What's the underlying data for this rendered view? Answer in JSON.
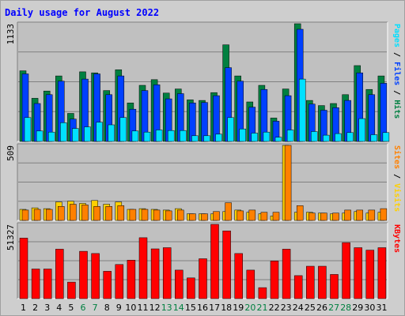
{
  "chart_data": {
    "type": "bar",
    "title": "Daily usage for August 2022",
    "categories": [
      "1",
      "2",
      "3",
      "4",
      "5",
      "6",
      "7",
      "8",
      "9",
      "10",
      "11",
      "12",
      "13",
      "14",
      "15",
      "16",
      "17",
      "18",
      "19",
      "20",
      "21",
      "22",
      "23",
      "24",
      "25",
      "26",
      "27",
      "28",
      "29",
      "30",
      "31"
    ],
    "weekend_days": [
      "6",
      "7",
      "13",
      "14",
      "20",
      "21",
      "27",
      "28"
    ],
    "panels": [
      {
        "name": "pages-files-hits",
        "ymax_label": "1133",
        "ylim": [
          0,
          1133
        ],
        "right_label": {
          "parts": [
            {
              "text": "Pages",
              "color": "#00e0ff"
            },
            {
              "text": " / ",
              "color": "#000000"
            },
            {
              "text": "Files",
              "color": "#0040ff"
            },
            {
              "text": " / ",
              "color": "#000000"
            },
            {
              "text": "Hits",
              "color": "#008040"
            }
          ]
        },
        "series": [
          {
            "name": "Hits",
            "color": "#008040",
            "values": [
              680,
              415,
              485,
              630,
              270,
              670,
              660,
              490,
              690,
              370,
              540,
              595,
              465,
              505,
              400,
              395,
              470,
              930,
              630,
              380,
              540,
              225,
              505,
              1133,
              395,
              345,
              365,
              450,
              730,
              500,
              630
            ]
          },
          {
            "name": "Files",
            "color": "#0040ff",
            "values": [
              650,
              365,
              450,
              580,
              215,
              600,
              650,
              450,
              630,
              310,
              490,
              545,
              410,
              460,
              370,
              375,
              440,
              710,
              580,
              330,
              500,
              195,
              440,
              1080,
              360,
              300,
              325,
              395,
              660,
              450,
              560
            ]
          },
          {
            "name": "Pages",
            "color": "#00e0ff",
            "values": [
              230,
              100,
              90,
              180,
              125,
              140,
              185,
              160,
              230,
              100,
              90,
              110,
              105,
              105,
              55,
              55,
              70,
              230,
              120,
              80,
              90,
              40,
              110,
              600,
              95,
              60,
              75,
              85,
              220,
              65,
              85
            ]
          }
        ]
      },
      {
        "name": "sites-visits",
        "ymax_label": "509",
        "ylim": [
          0,
          509
        ],
        "right_label": {
          "parts": [
            {
              "text": "Sites",
              "color": "#ff8000"
            },
            {
              "text": " / ",
              "color": "#000000"
            },
            {
              "text": "Visits",
              "color": "#ffd000"
            }
          ]
        },
        "series": [
          {
            "name": "Visits",
            "color": "#ffd000",
            "values": [
              75,
              85,
              80,
              125,
              130,
              115,
              135,
              110,
              125,
              75,
              80,
              75,
              70,
              80,
              45,
              45,
              45,
              60,
              70,
              55,
              45,
              30,
              509,
              55,
              55,
              50,
              45,
              50,
              60,
              50,
              55
            ]
          },
          {
            "name": "Sites",
            "color": "#ff8000",
            "values": [
              70,
              75,
              75,
              95,
              110,
              105,
              95,
              95,
              100,
              75,
              75,
              70,
              65,
              70,
              45,
              45,
              60,
              120,
              65,
              70,
              55,
              55,
              509,
              100,
              50,
              50,
              50,
              70,
              70,
              70,
              80
            ]
          }
        ]
      },
      {
        "name": "kbytes",
        "ymax_label": "51327",
        "ylim": [
          0,
          51327
        ],
        "right_label": {
          "parts": [
            {
              "text": "KBytes",
              "color": "#ff0000"
            }
          ]
        },
        "series": [
          {
            "name": "KBytes",
            "color": "#ff0000",
            "values": [
              41800,
              20500,
              20500,
              34200,
              11400,
              32700,
              31200,
              18900,
              23600,
              26600,
              42100,
              34400,
              35200,
              19700,
              14300,
              27600,
              51327,
              46800,
              31200,
              19700,
              7600,
              26000,
              34200,
              15900,
              22400,
              22400,
              16700,
              38700,
              35200,
              33500,
              35200
            ]
          }
        ]
      }
    ]
  }
}
